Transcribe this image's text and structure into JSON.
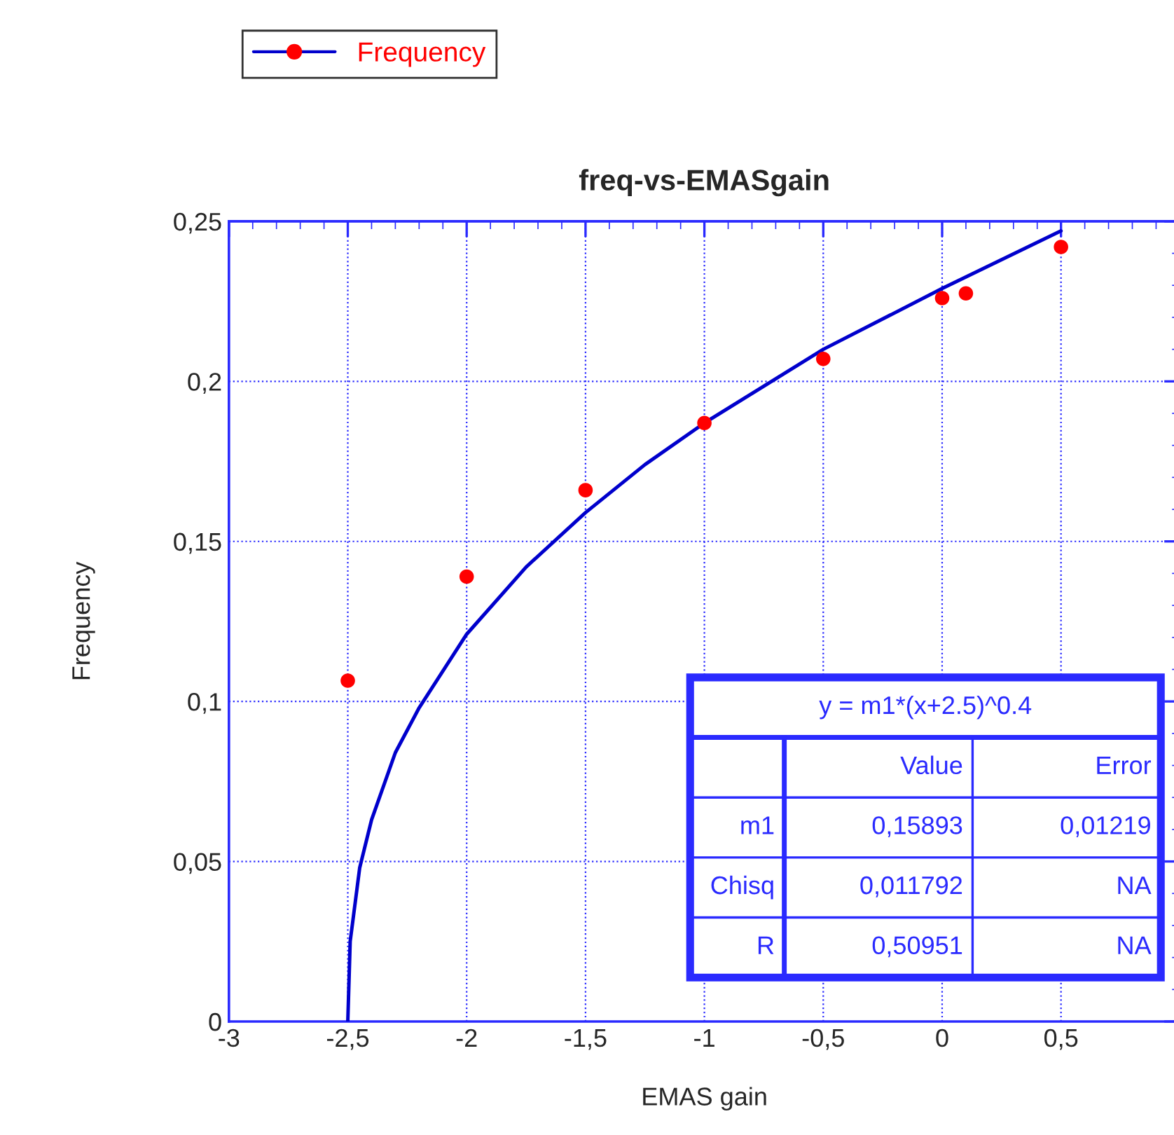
{
  "chart_data": {
    "type": "scatter",
    "title": "freq-vs-EMASgain",
    "xlabel": "EMAS gain",
    "ylabel": "Frequency",
    "xlim": [
      -3,
      1
    ],
    "xticks": [
      -3,
      {
        "value": -2.5,
        "label": "-2,5"
      },
      -2,
      {
        "value": -1.5,
        "label": "-1,5"
      },
      -1,
      {
        "value": -0.5,
        "label": "-0,5"
      },
      0,
      {
        "value": 0.5,
        "label": "0,5"
      },
      {
        "value": 1,
        "label": null
      }
    ],
    "ylim": [
      0,
      0.25
    ],
    "yticks": [
      0,
      {
        "value": 0.05,
        "label": "0,05"
      },
      {
        "value": 0.1,
        "label": "0,1"
      },
      {
        "value": 0.15,
        "label": "0,15"
      },
      {
        "value": 0.2,
        "label": "0,2"
      },
      {
        "value": 0.25,
        "label": "0,25"
      }
    ],
    "grid": true,
    "legend": "top left",
    "series": [
      {
        "name": "Frequency",
        "color": "#ff0000",
        "marker": "circle",
        "x": [
          -2.5,
          -2,
          -1.5,
          -1,
          -0.5,
          0,
          0.1,
          0.5
        ],
        "values": [
          0.1065,
          0.139,
          0.166,
          0.187,
          0.207,
          0.226,
          0.2275,
          0.242
        ]
      },
      {
        "type": "line",
        "color": "#0000cc",
        "marker": "none",
        "x": [
          -2.5,
          -2.49,
          -2.45,
          -2.4,
          -2.3,
          -2.2,
          -2.0,
          -1.75,
          -1.5,
          -1.25,
          -1.0,
          -0.5,
          0.0,
          0.5
        ],
        "values": [
          0.0,
          0.025,
          0.048,
          0.063,
          0.084,
          0.098,
          0.121,
          0.142,
          0.159,
          0.174,
          0.187,
          0.21,
          0.229,
          0.247
        ]
      }
    ],
    "annotations": [
      "y = m1*(x+2.5)^0.4",
      "Value",
      "Error",
      "m1",
      "0,15893",
      "0,01219",
      "Chisq",
      "0,011792",
      "NA",
      "R",
      "0,50951",
      "NA"
    ]
  }
}
